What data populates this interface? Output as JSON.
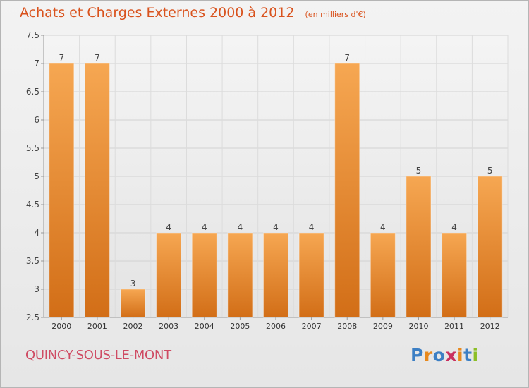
{
  "header": {
    "title": "Achats et Charges Externes 2000 à 2012",
    "subtitle": "(en milliers d'€)"
  },
  "footer": {
    "commune": "QUINCY-SOUS-LE-MONT",
    "logo_text": "Proxiti"
  },
  "colors": {
    "title": "#d9531e",
    "commune": "#cf4b63",
    "bar_top": "#f6a752",
    "bar_bottom": "#d26e17",
    "logo": [
      "#3c7fc4",
      "#e8891d",
      "#3c7fc4",
      "#c93060",
      "#e8891d",
      "#3c7fc4",
      "#8cbf26"
    ]
  },
  "chart_data": {
    "type": "bar",
    "categories": [
      "2000",
      "2001",
      "2002",
      "2003",
      "2004",
      "2005",
      "2006",
      "2007",
      "2008",
      "2009",
      "2010",
      "2011",
      "2012"
    ],
    "values": [
      7,
      7,
      3,
      4,
      4,
      4,
      4,
      4,
      7,
      4,
      5,
      4,
      5
    ],
    "data_labels": [
      "7",
      "7",
      "3",
      "4",
      "4",
      "4",
      "4",
      "4",
      "7",
      "4",
      "5",
      "4",
      "5"
    ],
    "ylim": [
      2.5,
      7.5
    ],
    "yticks": [
      2.5,
      3,
      3.5,
      4,
      4.5,
      5,
      5.5,
      6,
      6.5,
      7,
      7.5
    ],
    "ytick_labels": [
      "2.5",
      "3",
      "3.5",
      "4",
      "4.5",
      "5",
      "5.5",
      "6",
      "6.5",
      "7",
      "7.5"
    ],
    "grid": true
  }
}
